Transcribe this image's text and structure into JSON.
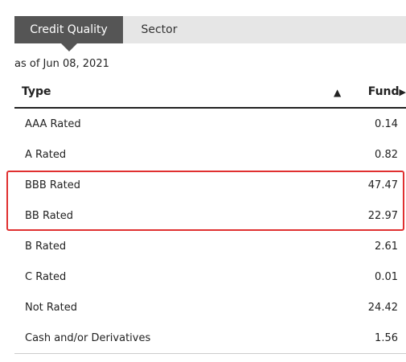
{
  "tabs": [
    {
      "label": "Credit Quality",
      "active": true
    },
    {
      "label": "Sector",
      "active": false
    }
  ],
  "as_of": "as of Jun 08, 2021",
  "table": {
    "columns": {
      "type": "Type",
      "fund": "Fund"
    },
    "sort_icon": "▲",
    "fund_arrow": "▶",
    "rows": [
      {
        "label": "AAA Rated",
        "value": "0.14"
      },
      {
        "label": "A Rated",
        "value": "0.82"
      },
      {
        "label": "BBB Rated",
        "value": "47.47"
      },
      {
        "label": "BB Rated",
        "value": "22.97"
      },
      {
        "label": "B Rated",
        "value": "2.61"
      },
      {
        "label": "C Rated",
        "value": "0.01"
      },
      {
        "label": "Not Rated",
        "value": "24.42"
      },
      {
        "label": "Cash and/or Derivatives",
        "value": "1.56"
      }
    ]
  },
  "colors": {
    "active_tab": "#555555",
    "highlight": "#e03030"
  }
}
